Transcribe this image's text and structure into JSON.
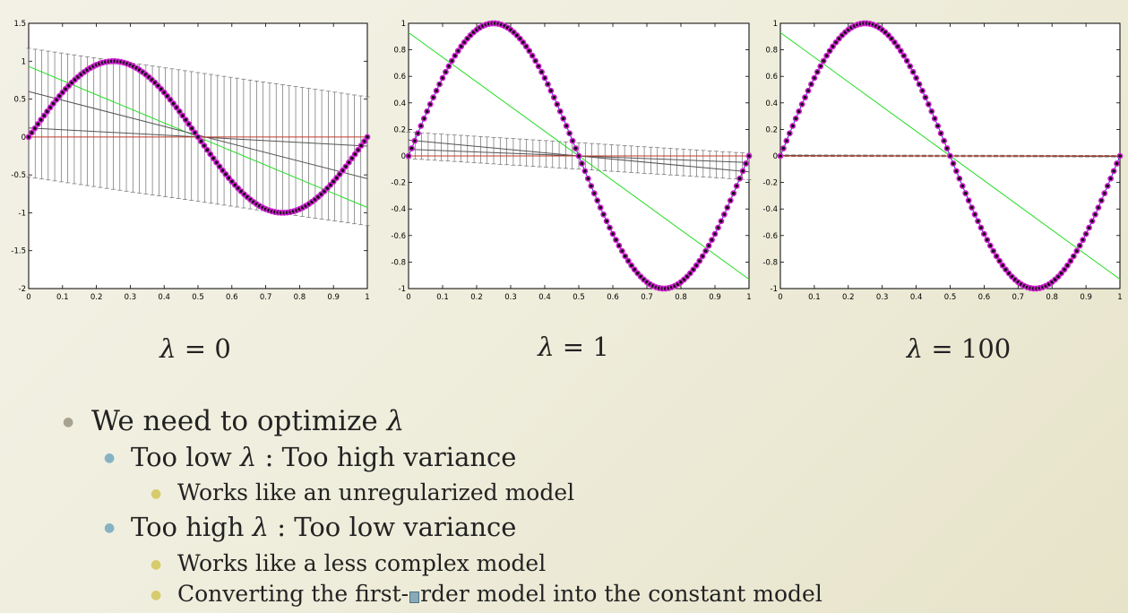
{
  "chart_data": [
    {
      "type": "line",
      "xlim": [
        0,
        1
      ],
      "ylim": [
        -2,
        1.5
      ],
      "xticks": [
        "0",
        "0.1",
        "0.2",
        "0.3",
        "0.4",
        "0.5",
        "0.6",
        "0.7",
        "0.8",
        "0.9",
        "1"
      ],
      "yticks": [
        "-2",
        "-1.5",
        "-1",
        "-0.5",
        "0",
        "0.5",
        "1",
        "1.5"
      ],
      "ytick_values": [
        -2,
        -1.5,
        -1,
        -0.5,
        0,
        0.5,
        1,
        1.5
      ],
      "series": [
        {
          "values_fn": "sin",
          "x": [
            0,
            1
          ]
        },
        {
          "x": [
            0,
            1
          ],
          "y": [
            0.93,
            -0.93
          ]
        },
        {
          "x": [
            0,
            1
          ],
          "y": [
            0.6,
            -0.55
          ]
        },
        {
          "x": [
            0,
            1
          ],
          "y": [
            0.12,
            -0.12
          ]
        },
        {
          "x": [
            0,
            1
          ],
          "y": [
            0,
            0
          ]
        }
      ],
      "errorbars": {
        "x": [
          0,
          1
        ],
        "center": [
          0.32,
          -0.32
        ],
        "halfwidth": [
          0.85,
          0.85
        ]
      },
      "grid": false
    },
    {
      "type": "line",
      "xlim": [
        0,
        1
      ],
      "ylim": [
        -1,
        1
      ],
      "xticks": [
        "0",
        "0.1",
        "0.2",
        "0.3",
        "0.4",
        "0.5",
        "0.6",
        "0.7",
        "0.8",
        "0.9",
        "1"
      ],
      "yticks": [
        "-1",
        "-0.8",
        "-0.6",
        "-0.4",
        "-0.2",
        "0",
        "0.2",
        "0.4",
        "0.6",
        "0.8",
        "1"
      ],
      "ytick_values": [
        -1,
        -0.8,
        -0.6,
        -0.4,
        -0.2,
        0,
        0.2,
        0.4,
        0.6,
        0.8,
        1
      ],
      "series": [
        {
          "values_fn": "sin",
          "x": [
            0,
            1
          ]
        },
        {
          "x": [
            0,
            1
          ],
          "y": [
            0.93,
            -0.93
          ]
        },
        {
          "x": [
            0,
            1
          ],
          "y": [
            0.12,
            -0.12
          ]
        },
        {
          "x": [
            0,
            1
          ],
          "y": [
            0.05,
            -0.05
          ]
        },
        {
          "x": [
            0,
            1
          ],
          "y": [
            0,
            0
          ]
        }
      ],
      "errorbars": {
        "x": [
          0,
          1
        ],
        "center": [
          0.08,
          -0.08
        ],
        "halfwidth": [
          0.1,
          0.1
        ]
      },
      "grid": false
    },
    {
      "type": "line",
      "xlim": [
        0,
        1
      ],
      "ylim": [
        -1,
        1
      ],
      "xticks": [
        "0",
        "0.1",
        "0.2",
        "0.3",
        "0.4",
        "0.5",
        "0.6",
        "0.7",
        "0.8",
        "0.9",
        "1"
      ],
      "yticks": [
        "-1",
        "-0.8",
        "-0.6",
        "-0.4",
        "-0.2",
        "0",
        "0.2",
        "0.4",
        "0.6",
        "0.8",
        "1"
      ],
      "ytick_values": [
        -1,
        -0.8,
        -0.6,
        -0.4,
        -0.2,
        0,
        0.2,
        0.4,
        0.6,
        0.8,
        1
      ],
      "series": [
        {
          "values_fn": "sin",
          "x": [
            0,
            1
          ]
        },
        {
          "x": [
            0,
            1
          ],
          "y": [
            0.93,
            -0.93
          ]
        },
        {
          "x": [
            0,
            1
          ],
          "y": [
            0.004,
            -0.004
          ]
        },
        {
          "x": [
            0,
            1
          ],
          "y": [
            0,
            0
          ]
        }
      ],
      "errorbars": {
        "x": [
          0,
          1
        ],
        "center": [
          0.002,
          -0.002
        ],
        "halfwidth": [
          0.006,
          0.006
        ]
      },
      "grid": false
    }
  ],
  "colors": {
    "sine": "#1f3bbf",
    "points_fill": "#111111",
    "points_edge": "#d020d0",
    "fit_green": "#22dd22",
    "fit_gray": "#555555",
    "fit_red": "#c0392b",
    "errorbar": "#6e6e6e"
  },
  "captions": [
    {
      "lambda": "λ",
      "rest": " = 0"
    },
    {
      "lambda": "λ",
      "rest": " = 1"
    },
    {
      "lambda": "λ",
      "rest": " = 100"
    }
  ],
  "bullets": {
    "b1": {
      "pre": "We need to optimize ",
      "lam": "λ",
      "post": ""
    },
    "b2": {
      "pre": "Too low ",
      "lam": "λ",
      "post": " : Too high variance"
    },
    "b3": "Works like an unregularized model",
    "b4": {
      "pre": "Too high ",
      "lam": "λ",
      "post": " : Too low variance"
    },
    "b5": "Works like a less complex model",
    "b6": {
      "pre": "Converting the first-",
      "post": "rder model into the constant model"
    }
  },
  "bullet_marks": {
    "l1": "●",
    "l2": "●",
    "l3": "●"
  },
  "bullet_colors": {
    "l1": "#a8a290",
    "l2": "#86b3c4",
    "l3": "#d6cc6c"
  }
}
